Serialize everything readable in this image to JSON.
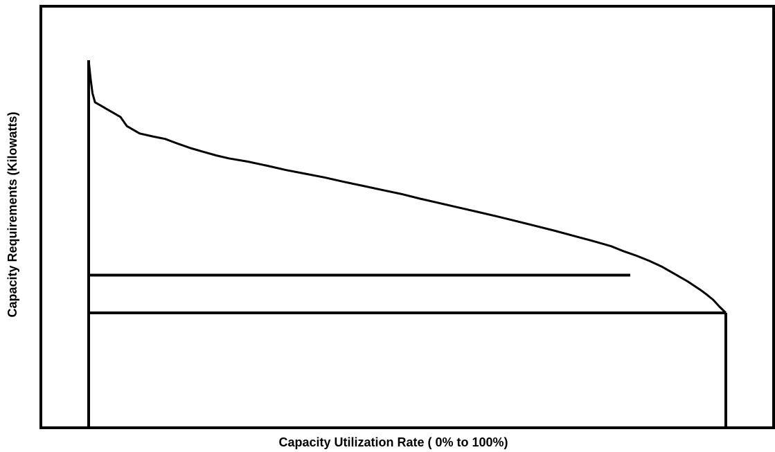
{
  "chart_data": {
    "type": "line",
    "title": "",
    "xlabel": "Capacity Utilization Rate ( 0% to 100%)",
    "ylabel": "Capacity Requirements (Kilowatts)",
    "xlim": [
      0,
      100
    ],
    "ylim": [
      0,
      100
    ],
    "series": [
      {
        "values_note": "",
        "x": [
          0,
          0.3,
          0.6,
          1,
          2,
          3,
          4,
          5,
          6,
          8,
          10,
          12,
          14,
          16,
          18,
          20,
          22,
          25,
          28,
          31,
          34,
          37,
          40,
          43,
          46,
          49,
          52,
          55,
          58,
          61,
          64,
          67,
          70,
          73,
          76,
          79,
          82,
          84,
          86,
          88,
          90,
          92,
          94,
          96,
          97,
          98,
          99,
          100
        ],
        "y": [
          100,
          95,
          91,
          88.5,
          87.5,
          86.5,
          85.5,
          84.5,
          82,
          80,
          79.2,
          78.5,
          77.2,
          76,
          75,
          74,
          73.2,
          72.3,
          71.2,
          70,
          69,
          68,
          66.8,
          65.7,
          64.6,
          63.5,
          62.2,
          61,
          59.8,
          58.6,
          57.4,
          56.1,
          54.8,
          53.5,
          52.1,
          50.7,
          49.2,
          47.8,
          46.6,
          45.2,
          43.6,
          41.6,
          39.6,
          37.3,
          36,
          34.6,
          32.7,
          31
        ]
      }
    ],
    "reference_lines": [
      {
        "y": 41.3,
        "x_from": 0,
        "x_to": 85
      },
      {
        "y": 31,
        "x_from": 0,
        "x_to": 100
      }
    ],
    "drop_lines": [
      {
        "x": 0,
        "y_from": 0,
        "y_to": 100
      },
      {
        "x": 100,
        "y_from": 0,
        "y_to": 31
      }
    ],
    "grid": false,
    "legend": "none"
  }
}
